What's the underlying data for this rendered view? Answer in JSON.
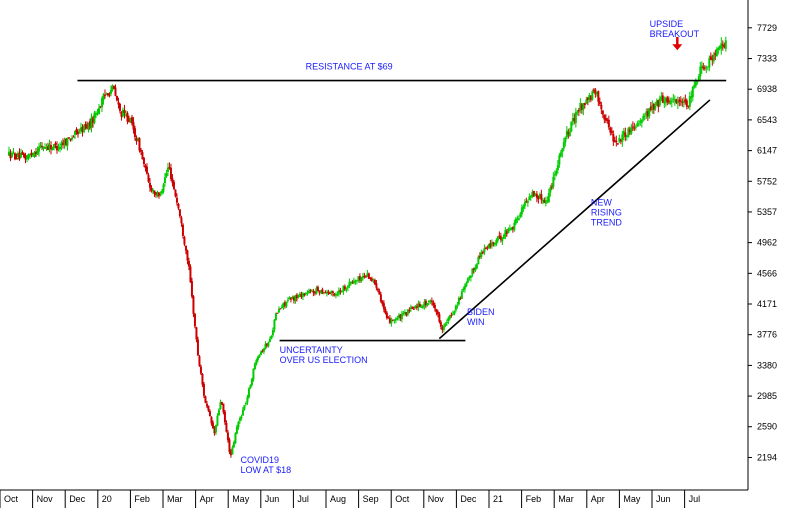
{
  "chart_data": {
    "type": "candlestick",
    "colors": {
      "up": "#00cc00",
      "down": "#cc0000",
      "lines": "#000000",
      "annotations": "#1a1aff",
      "arrow": "#e00000"
    },
    "grid": false,
    "y_ticks": [
      2194,
      2590,
      2985,
      3380,
      3776,
      4171,
      4566,
      4962,
      5357,
      5752,
      6147,
      6543,
      6938,
      7333,
      7729
    ],
    "ylim": [
      1775,
      8010
    ],
    "x_ticks": [
      "Oct",
      "Nov",
      "Dec",
      "20",
      "Feb",
      "Mar",
      "Apr",
      "May",
      "Jun",
      "Jul",
      "Aug",
      "Sep",
      "Oct",
      "Nov",
      "Dec",
      "21",
      "Feb",
      "Mar",
      "Apr",
      "May",
      "Jun",
      "Jul"
    ],
    "xlim": [
      0,
      22.3
    ],
    "waypoints": [
      [
        0,
        6100
      ],
      [
        0.5,
        6050
      ],
      [
        1,
        6200
      ],
      [
        1.5,
        6200
      ],
      [
        2,
        6350
      ],
      [
        2.5,
        6500
      ],
      [
        3.0,
        6900
      ],
      [
        3.2,
        6950
      ],
      [
        3.4,
        6650
      ],
      [
        3.7,
        6550
      ],
      [
        4.0,
        6200
      ],
      [
        4.3,
        5700
      ],
      [
        4.6,
        5550
      ],
      [
        4.9,
        5950
      ],
      [
        5.2,
        5400
      ],
      [
        5.5,
        4700
      ],
      [
        5.8,
        3500
      ],
      [
        6.0,
        2950
      ],
      [
        6.3,
        2500
      ],
      [
        6.5,
        2950
      ],
      [
        6.8,
        2194
      ],
      [
        7.0,
        2600
      ],
      [
        7.3,
        2950
      ],
      [
        7.6,
        3500
      ],
      [
        8.0,
        3700
      ],
      [
        8.2,
        4050
      ],
      [
        8.5,
        4200
      ],
      [
        9.0,
        4300
      ],
      [
        9.5,
        4350
      ],
      [
        10.0,
        4300
      ],
      [
        10.5,
        4450
      ],
      [
        11.0,
        4550
      ],
      [
        11.3,
        4400
      ],
      [
        11.6,
        3950
      ],
      [
        12.0,
        4000
      ],
      [
        12.5,
        4150
      ],
      [
        13.0,
        4200
      ],
      [
        13.3,
        3850
      ],
      [
        13.6,
        4050
      ],
      [
        14.0,
        4400
      ],
      [
        14.5,
        4850
      ],
      [
        15.0,
        5000
      ],
      [
        15.5,
        5200
      ],
      [
        16.0,
        5600
      ],
      [
        16.5,
        5500
      ],
      [
        17.0,
        6250
      ],
      [
        17.5,
        6700
      ],
      [
        18.0,
        6900
      ],
      [
        18.3,
        6550
      ],
      [
        18.6,
        6250
      ],
      [
        19.0,
        6400
      ],
      [
        19.5,
        6600
      ],
      [
        20.0,
        6800
      ],
      [
        20.5,
        6800
      ],
      [
        20.8,
        6700
      ],
      [
        21.2,
        7200
      ],
      [
        21.6,
        7350
      ],
      [
        22.0,
        7550
      ]
    ],
    "lines": [
      {
        "name": "resistance",
        "from": [
          2.1,
          7050
        ],
        "to": [
          22.0,
          7050
        ]
      },
      {
        "name": "support",
        "from": [
          8.3,
          3700
        ],
        "to": [
          14.0,
          3700
        ]
      },
      {
        "name": "trend",
        "from": [
          13.2,
          3725
        ],
        "to": [
          21.5,
          6800
        ]
      }
    ],
    "annotations": [
      {
        "name": "resistance-label",
        "lines": [
          "RESISTANCE AT $69"
        ],
        "x": 9.1,
        "y": 7190
      },
      {
        "name": "covid-label",
        "lines": [
          "COVID19",
          "LOW AT $18"
        ],
        "x": 7.1,
        "y": 2120
      },
      {
        "name": "uncertainty-label",
        "lines": [
          "UNCERTAINTY",
          "OVER US ELECTION"
        ],
        "x": 8.3,
        "y": 3540
      },
      {
        "name": "biden-label",
        "lines": [
          "BIDEN",
          "WIN"
        ],
        "x": 14.05,
        "y": 4030
      },
      {
        "name": "rising-trend-label",
        "lines": [
          "NEW",
          "RISING",
          "TREND"
        ],
        "x": 17.85,
        "y": 5440
      },
      {
        "name": "breakout-label",
        "lines": [
          "UPSIDE",
          "BREAKOUT"
        ],
        "x": 19.65,
        "y": 7740
      }
    ],
    "breakout_arrow": {
      "x": 20.5,
      "y_from": 7610,
      "y_to": 7440
    }
  }
}
